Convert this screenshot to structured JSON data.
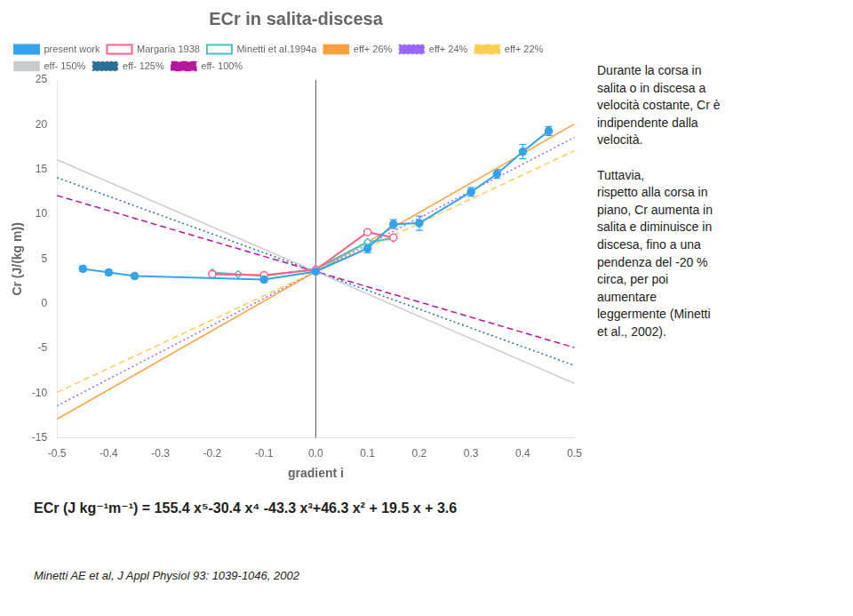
{
  "chart_data": {
    "type": "line",
    "title": "ECr in salita-discesa",
    "xlabel": "gradient i",
    "ylabel": "Cr (J/(kg m))",
    "xlim": [
      -0.5,
      0.5
    ],
    "ylim": [
      -15,
      25
    ],
    "xticks": [
      -0.5,
      -0.4,
      -0.3,
      -0.2,
      -0.1,
      {
        "value": 0,
        "label": "0.0"
      },
      0.1,
      0.2,
      0.3,
      0.4,
      0.5
    ],
    "yticks": [
      -15,
      -10,
      -5,
      0,
      5,
      10,
      15,
      20,
      25
    ],
    "grid": false,
    "legend": "upper left",
    "series": [
      {
        "name": "present work",
        "marker": "circle",
        "line_style": "solid",
        "x": [
          -0.45,
          -0.4,
          -0.35,
          -0.1,
          0.0,
          0.1,
          0.15,
          0.2,
          0.3,
          0.35,
          0.4,
          0.45
        ],
        "values": [
          3.9,
          3.5,
          3.1,
          2.7,
          3.6,
          6.2,
          8.9,
          9.0,
          12.5,
          14.5,
          17.0,
          19.3
        ],
        "errors": [
          0.3,
          0.3,
          0.2,
          0.2,
          0.3,
          0.5,
          0.5,
          0.8,
          0.5,
          0.5,
          0.8,
          0.5
        ]
      },
      {
        "name": "Margaria 1938",
        "marker": "open_circle",
        "line_style": "solid",
        "x": [
          -0.2,
          -0.1,
          0.0,
          0.1,
          0.15
        ],
        "values": [
          3.3,
          3.2,
          3.8,
          8.0,
          7.4
        ]
      },
      {
        "name": "Minetti et al.1994a",
        "marker": "open_diamond",
        "line_style": "solid",
        "x": [
          -0.2,
          -0.15,
          -0.1,
          0.0,
          0.1,
          0.15
        ],
        "values": [
          3.5,
          3.3,
          3.1,
          3.9,
          6.9,
          7.3
        ]
      },
      {
        "name": "eff+ 26%",
        "marker": "none",
        "line_style": "solid",
        "x": [
          -0.5,
          0.5
        ],
        "values": [
          -12.9,
          20.1
        ]
      },
      {
        "name": "eff+ 24%",
        "marker": "none",
        "line_style": "dotted",
        "x": [
          -0.5,
          0.5
        ],
        "values": [
          -11.4,
          18.6
        ]
      },
      {
        "name": "eff+ 22%",
        "marker": "none",
        "line_style": "dashed",
        "x": [
          -0.5,
          0.5
        ],
        "values": [
          -9.9,
          17.1
        ]
      },
      {
        "name": "eff- 150%",
        "marker": "none",
        "line_style": "solid",
        "x": [
          -0.5,
          0.5
        ],
        "values": [
          16.1,
          -8.9
        ]
      },
      {
        "name": "eff- 125%",
        "marker": "none",
        "line_style": "dotted",
        "x": [
          -0.5,
          0.5
        ],
        "values": [
          14.1,
          -6.9
        ]
      },
      {
        "name": "eff- 100%",
        "marker": "none",
        "line_style": "dashed",
        "x": [
          -0.5,
          0.5
        ],
        "values": [
          12.1,
          -4.9
        ]
      }
    ],
    "reference_lines": [
      {
        "x": 0
      }
    ],
    "annotations": [
      "Durante la corsa in\nsalita o in discesa a\nvelocità costante, Cr è\nindipendente dalla\nvelocità.\n\nTuttavia,\nrispetto alla corsa in\npiano, Cr aumenta in\nsalita e diminuisce in\ndiscesa, fino a una\npendenza del -20 %\ncirca, per poi\naumentare\nleggermente (Minetti\net al., 2002).",
      "ECr (J kg⁻¹m⁻¹) = 155.4 x⁵-30.4 x⁴ -43.3 x³+46.3 x² + 19.5 x + 3.6",
      "Minetti AE et al, J Appl Physiol 93: 1039-1046, 2002"
    ]
  }
}
